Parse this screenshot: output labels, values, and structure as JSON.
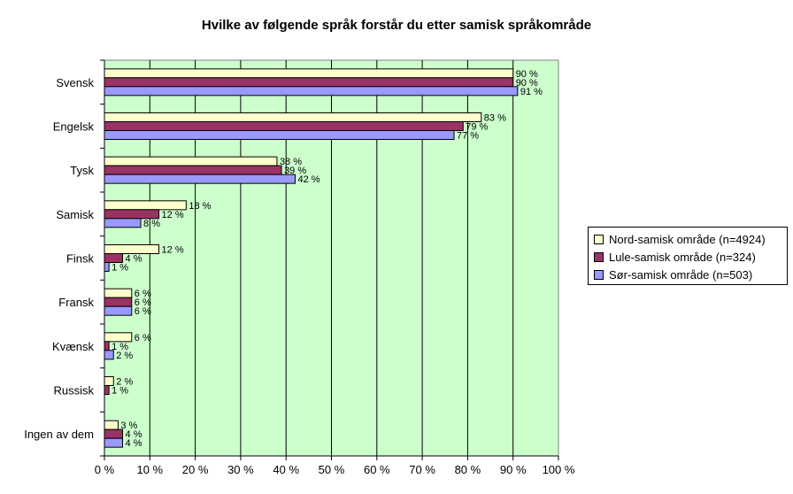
{
  "chart_data": {
    "type": "bar",
    "orientation": "horizontal",
    "title": "Hvilke av følgende språk forstår du etter samisk språkområde",
    "categories": [
      "Svensk",
      "Engelsk",
      "Tysk",
      "Samisk",
      "Finsk",
      "Fransk",
      "Kvænsk",
      "Russisk",
      "Ingen av dem"
    ],
    "series": [
      {
        "name": "Nord-samisk område (n=4924)",
        "color": "#ffffcc",
        "values": [
          90,
          83,
          38,
          18,
          12,
          6,
          6,
          2,
          3
        ]
      },
      {
        "name": "Lule-samisk område (n=324)",
        "color": "#993366",
        "values": [
          90,
          79,
          39,
          12,
          4,
          6,
          1,
          1,
          4
        ]
      },
      {
        "name": "Sør-samisk område (n=503)",
        "color": "#9999ff",
        "values": [
          91,
          77,
          42,
          8,
          1,
          6,
          2,
          null,
          4
        ]
      }
    ],
    "xlim": [
      0,
      100
    ],
    "x_ticks": [
      "0 %",
      "10 %",
      "20 %",
      "30 %",
      "40 %",
      "50 %",
      "60 %",
      "70 %",
      "80 %",
      "90 %",
      "100 %"
    ],
    "value_suffix": " %",
    "plot_background": "#ccffcc",
    "grid": true,
    "legend_position": "right"
  }
}
